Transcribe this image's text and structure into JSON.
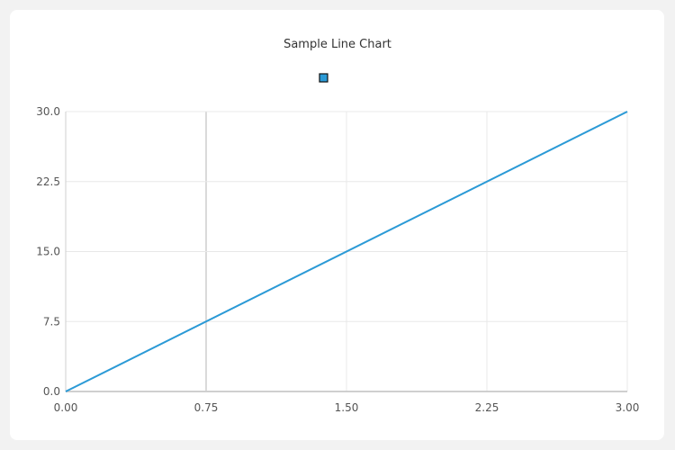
{
  "chart_data": {
    "type": "line",
    "title": "Sample Line Chart",
    "x": [
      0,
      3
    ],
    "series": [
      {
        "values": [
          0,
          30
        ],
        "color": "#2b9ad6"
      }
    ],
    "xlim": [
      0,
      3
    ],
    "ylim": [
      0,
      30
    ],
    "x_ticks": [
      "0.00",
      "0.75",
      "1.50",
      "2.25",
      "3.00"
    ],
    "y_ticks": [
      "0.0",
      "7.5",
      "15.0",
      "22.5",
      "30.0"
    ],
    "grid": true,
    "legend": "top-center"
  }
}
